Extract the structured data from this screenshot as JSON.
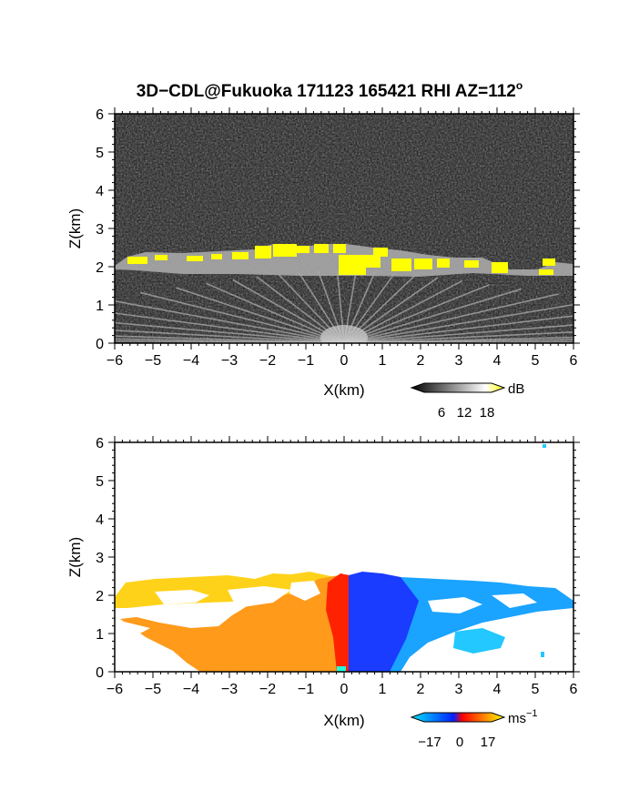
{
  "title": "3D−CDL@Fukuoka 171123 165421 RHI AZ=112",
  "title_sup": "o",
  "chart_data": [
    {
      "type": "heatmap",
      "name": "reflectivity",
      "xlabel": "X(km)",
      "ylabel": "Z(km)",
      "xlim": [
        -6,
        6
      ],
      "ylim": [
        0,
        6
      ],
      "xticks": [
        "−6",
        "−5",
        "−4",
        "−3",
        "−2",
        "−1",
        "0",
        "1",
        "2",
        "3",
        "4",
        "5",
        "6"
      ],
      "yticks": [
        "0",
        "1",
        "2",
        "3",
        "4",
        "5",
        "6"
      ],
      "colorbar": {
        "ticks": [
          "6",
          "12",
          "18"
        ],
        "unit": "dB",
        "colors": [
          "#000000",
          "#ffffff",
          "#ffff00"
        ]
      },
      "cloud_top_km": 2.2,
      "cloud_base_km": 1.8
    },
    {
      "type": "heatmap",
      "name": "doppler-velocity",
      "xlabel": "X(km)",
      "ylabel": "Z(km)",
      "xlim": [
        -6,
        6
      ],
      "ylim": [
        0,
        6
      ],
      "xticks": [
        "−6",
        "−5",
        "−4",
        "−3",
        "−2",
        "−1",
        "0",
        "1",
        "2",
        "3",
        "4",
        "5",
        "6"
      ],
      "yticks": [
        "0",
        "1",
        "2",
        "3",
        "4",
        "5",
        "6"
      ],
      "colorbar": {
        "ticks": [
          "−17",
          "0",
          "17"
        ],
        "unit": "ms",
        "unit_sup": "−1",
        "colors": [
          "#00e5ff",
          "#0022ff",
          "#ff0000",
          "#ffff00"
        ]
      },
      "velocity_range": [
        -17,
        17
      ]
    }
  ]
}
